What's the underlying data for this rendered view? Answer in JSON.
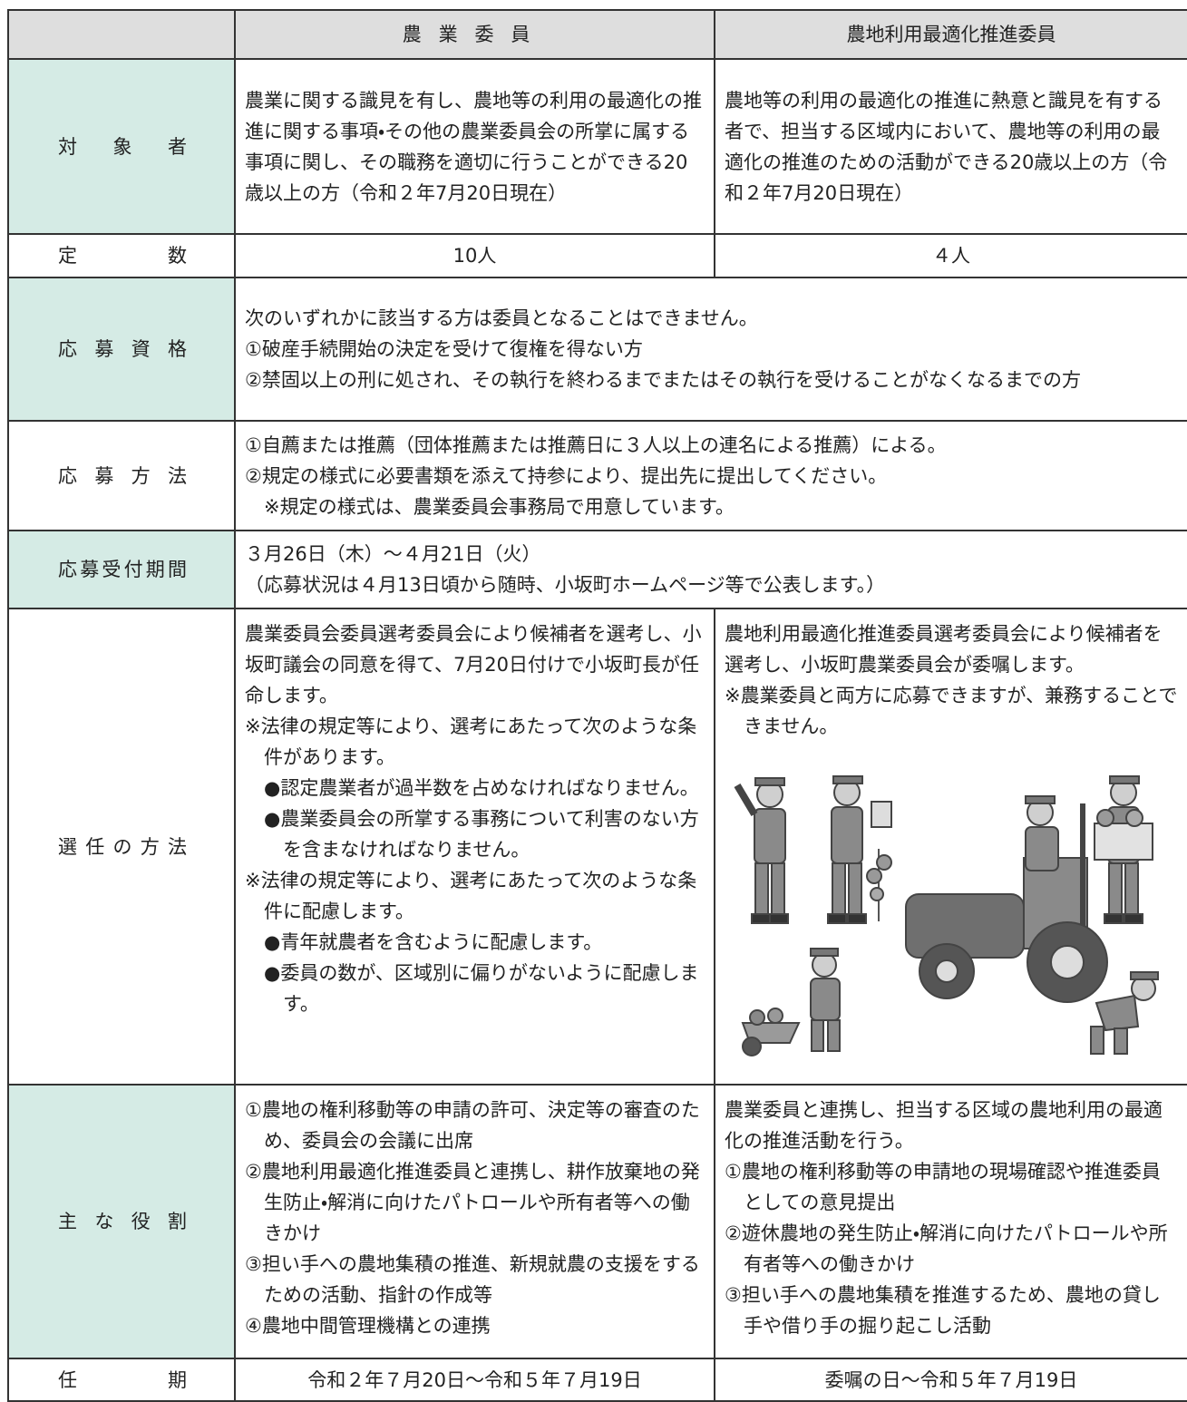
{
  "header": {
    "col1": "農業委員",
    "col2": "農地利用最適化推進委員"
  },
  "rows": [
    {
      "label": "対象者",
      "shaded": true,
      "cells": [
        [
          "農業に関する識見を有し、農地等の利用の最適化の推進に関する事項・その他の農業委員会の所掌に属する事項に関し、その職務を適切に行うことができる20歳以上の方（令和２年7月20日現在）"
        ],
        [
          "農地等の利用の最適化の推進に熱意と識見を有する者で、担当する区域内において、農地等の利用の最適化の推進のための活動ができる20歳以上の方（令和２年7月20日現在）"
        ]
      ]
    },
    {
      "label": "定数",
      "shaded": false,
      "align": "center",
      "cells": [
        [
          "10人"
        ],
        [
          "４人"
        ]
      ]
    },
    {
      "label": "応募資格",
      "shaded": true,
      "cells": [
        [
          "次のいずれかに該当する方は委員となることはできません。",
          "①破産手続開始の決定を受けて復権を得ない方",
          "②禁固以上の刑に処され、その執行を終わるまでまたはその執行を受けることがなくなるまでの方"
        ]
      ]
    },
    {
      "label": "応募方法",
      "shaded": false,
      "cells": [
        [
          "①自薦または推薦（団体推薦または推薦日に３人以上の連名による推薦）による。",
          {
            "text": "②規定の様式に必要書類を添えて持参により、提出先に提出してください。",
            "items": [
              "※規定の様式は、農業委員会事務局で用意しています。"
            ]
          }
        ]
      ]
    },
    {
      "label": "応募受付期間",
      "shaded": true,
      "cells": [
        [
          "３月26日（木）～４月21日（火）",
          "（応募状況は４月13日頃から随時、小坂町ホームページ等で公表します。）"
        ]
      ]
    },
    {
      "label": "選任の方法",
      "shaded": false,
      "cells": [
        [
          "農業委員会委員選考委員会により候補者を選考し、小坂町議会の同意を得て、7月20日付けで小坂町長が任命します。",
          {
            "text": "※法律の規定等により、選考にあたって次のような条件があります。",
            "items": [
              "●認定農業者が過半数を占めなければなりません。",
              "●農業委員会の所掌する事務について利害のない方を含まなければなりません。"
            ]
          },
          {
            "text": "※法律の規定等により、選考にあたって次のような条件に配慮します。",
            "items": [
              "●青年就農者を含むように配慮します。",
              "●委員の数が、区域別に偏りがないように配慮します。"
            ]
          }
        ],
        [
          "農地利用最適化推進委員選考委員会により候補者を選考し、小坂町農業委員会が委嘱します。",
          "※農業委員と両方に応募できますが、兼務することできません。"
        ]
      ]
    },
    {
      "label": "主な役割",
      "shaded": true,
      "cells": [
        [
          "①農地の権利移動等の申請の許可、決定等の審査のため、委員会の会議に出席",
          "②農地利用最適化推進委員と連携し、耕作放棄地の発生防止・解消に向けたパトロールや所有者等への働きかけ",
          "③担い手への農地集積の推進、新規就農の支援をするための活動、指針の作成等",
          "④農地中間管理機構との連携"
        ],
        [
          "農業委員と連携し、担当する区域の農地利用の最適化の推進活動を行う。",
          "①農地の権利移動等の申請地の現場確認や推進委員としての意見提出",
          "②遊休農地の発生防止・解消に向けたパトロールや所有者等への働きかけ",
          "③担い手への農地集積を推進するため、農地の貸し手や借り手の掘り起こし活動"
        ]
      ]
    },
    {
      "label": "任期",
      "shaded": false,
      "align": "center",
      "cells": [
        [
          "令和２年７月20日～令和５年７月19日"
        ],
        [
          "委嘱の日～令和５年７月19日"
        ]
      ]
    }
  ]
}
